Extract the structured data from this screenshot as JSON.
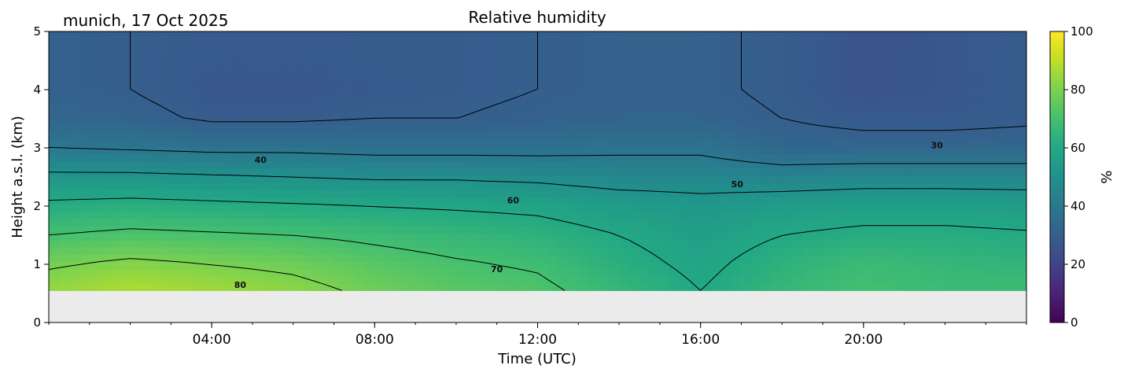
{
  "chart_data": {
    "type": "heatmap",
    "title": "Relative humidity",
    "subtitle": "munich, 17 Oct 2025",
    "xlabel": "Time (UTC)",
    "ylabel": "Height a.s.l. (km)",
    "x_ticks": [
      "04:00",
      "08:00",
      "12:00",
      "16:00",
      "20:00"
    ],
    "x_tick_hours": [
      4,
      8,
      12,
      16,
      20
    ],
    "xlim_hours": [
      0,
      24
    ],
    "y_ticks": [
      "0",
      "1",
      "2",
      "3",
      "4",
      "5"
    ],
    "ylim": [
      0,
      5
    ],
    "data_bottom_km": 0.55,
    "colorbar": {
      "label": "%",
      "ticks": [
        "0",
        "20",
        "40",
        "60",
        "80",
        "100"
      ],
      "range": [
        0,
        100
      ],
      "colormap": "viridis"
    },
    "contour_levels": [
      30,
      40,
      50,
      60,
      70,
      80
    ],
    "contour_labels": [
      {
        "text": "30",
        "hour": 21.8,
        "km": 3.05
      },
      {
        "text": "40",
        "hour": 5.2,
        "km": 2.8
      },
      {
        "text": "50",
        "hour": 16.9,
        "km": 2.38
      },
      {
        "text": "60",
        "hour": 11.4,
        "km": 2.1
      },
      {
        "text": "70",
        "hour": 11.0,
        "km": 0.92
      },
      {
        "text": "80",
        "hour": 4.7,
        "km": 0.65
      }
    ],
    "humidity_field": {
      "hours": [
        0,
        2,
        4,
        6,
        8,
        10,
        12,
        14,
        16,
        18,
        20,
        22,
        24
      ],
      "heights_km": [
        0.55,
        1.0,
        1.5,
        2.0,
        2.5,
        3.0,
        3.5,
        4.0,
        4.5,
        5.0
      ],
      "values": [
        [
          84,
          88,
          86,
          83,
          78,
          74,
          72,
          66,
          60,
          66,
          70,
          68,
          68
        ],
        [
          79,
          82,
          80,
          78,
          74,
          71,
          69,
          63,
          58,
          64,
          68,
          66,
          65
        ],
        [
          70,
          72,
          71,
          70,
          68,
          66,
          64,
          60,
          56,
          60,
          62,
          62,
          61
        ],
        [
          62,
          63,
          62,
          61,
          60,
          59,
          58,
          55,
          53,
          55,
          56,
          56,
          55
        ],
        [
          52,
          52,
          51,
          50,
          49,
          49,
          48,
          46,
          46,
          45,
          46,
          46,
          46
        ],
        [
          40,
          39,
          38,
          38,
          37,
          37,
          37,
          38,
          38,
          33,
          33,
          33,
          33
        ],
        [
          33,
          32,
          29,
          29,
          30,
          30,
          31,
          32,
          32,
          30,
          28,
          28,
          29
        ],
        [
          31,
          30,
          27,
          27,
          28,
          29,
          30,
          31,
          31,
          29,
          26,
          27,
          29
        ],
        [
          31,
          30,
          28,
          28,
          29,
          29,
          30,
          31,
          31,
          29,
          26,
          27,
          29
        ],
        [
          31,
          30,
          28,
          28,
          29,
          29,
          30,
          31,
          31,
          29,
          26,
          27,
          29
        ]
      ]
    }
  }
}
